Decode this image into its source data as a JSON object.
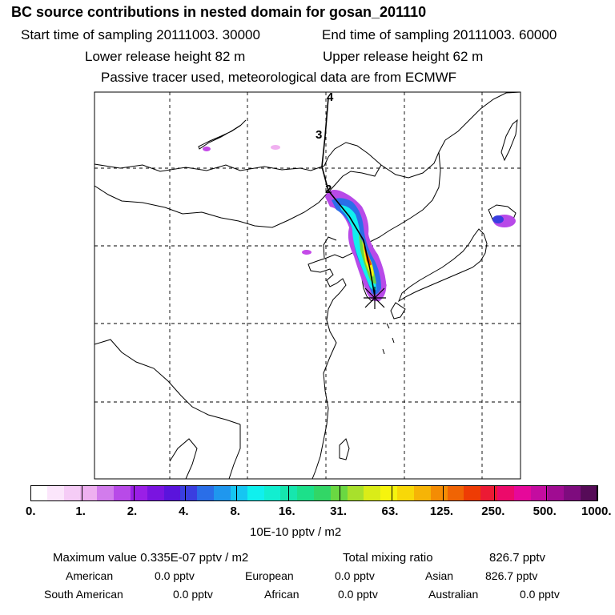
{
  "title": "BC  source contributions in nested domain for gosan_201110",
  "start_time": "Start time of sampling 20111003. 30000",
  "end_time": "End time of sampling 20111003. 60000",
  "lower_release": "Lower release height   82 m",
  "upper_release": "Upper release height   62 m",
  "tracer_note": "Passive tracer used, meteorological data are from ECMWF",
  "trajectory_labels": [
    "4",
    "3",
    "2"
  ],
  "legend": {
    "colors": [
      "#ffffff",
      "#fbe6fb",
      "#f5ccf6",
      "#eeb0f0",
      "#d27cec",
      "#b84ae8",
      "#9a1fe6",
      "#7a14e0",
      "#5a14dc",
      "#3a3ee0",
      "#2a6ee8",
      "#1f97ee",
      "#16c6f2",
      "#10f0ee",
      "#12eed0",
      "#16e6ae",
      "#1ce08a",
      "#32d666",
      "#6ad842",
      "#a8e02c",
      "#daec18",
      "#f6f40e",
      "#f8d808",
      "#f6b406",
      "#f48c04",
      "#f06404",
      "#ee3c04",
      "#ec1a34",
      "#ec0a6a",
      "#e6089a",
      "#c40ca0",
      "#a00c92",
      "#7e0c7e",
      "#560b58"
    ],
    "ticks": [
      "0.",
      "1.",
      "2.",
      "4.",
      "8.",
      "16.",
      "31.",
      "63.",
      "125.",
      "250.",
      "500.",
      "1000."
    ],
    "unit": "10E-10 pptv / m2"
  },
  "stats": {
    "max_label": "Maximum value  0.335E-07 pptv / m2",
    "total_label": "Total mixing ratio",
    "total_value": "826.7 pptv",
    "regions": [
      {
        "name": "American",
        "value": "0.0 pptv"
      },
      {
        "name": "European",
        "value": "0.0 pptv"
      },
      {
        "name": "Asian",
        "value": "826.7 pptv"
      },
      {
        "name": "South American",
        "value": "0.0 pptv"
      },
      {
        "name": "African",
        "value": "0.0 pptv"
      },
      {
        "name": "Australian",
        "value": "0.0 pptv"
      }
    ]
  }
}
